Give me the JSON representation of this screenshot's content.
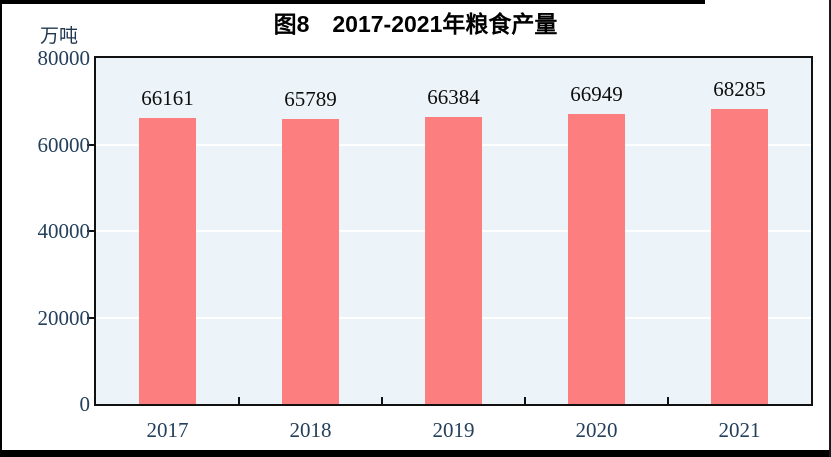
{
  "title": "图8　2017-2021年粮食产量",
  "unit_label": "万吨",
  "colors": {
    "bar": "#FC7E7E",
    "plot_background": "#EDF4F9",
    "gridline": "#FFFFFF",
    "frame": "#111111",
    "axis_text": "#24405C",
    "title_text": "#000000"
  },
  "chart_data": {
    "type": "bar",
    "title": "图8　2017-2021年粮食产量",
    "ylabel": "万吨",
    "categories": [
      "2017",
      "2018",
      "2019",
      "2020",
      "2021"
    ],
    "values": [
      66161,
      65789,
      66384,
      66949,
      68285
    ],
    "ylim": [
      0,
      80000
    ],
    "y_ticks": [
      0,
      20000,
      40000,
      60000,
      80000
    ],
    "grid": true,
    "legend": false,
    "data_labels": true
  }
}
